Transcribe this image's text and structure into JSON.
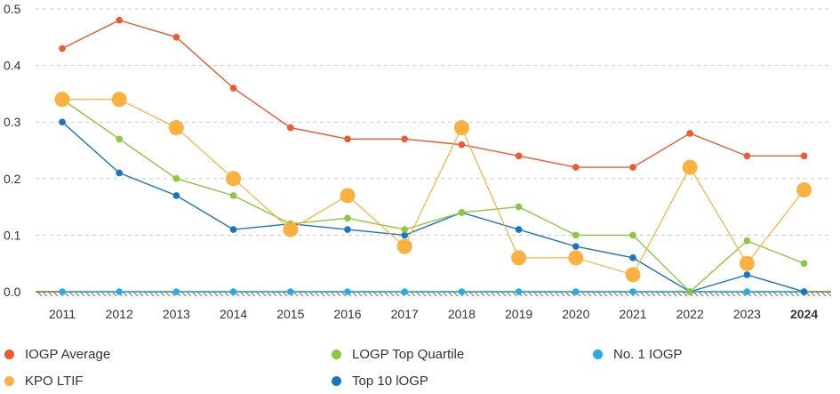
{
  "chart_data": {
    "type": "line",
    "title": "",
    "xlabel": "",
    "ylabel": "",
    "x": [
      "2011",
      "2012",
      "2013",
      "2014",
      "2015",
      "2016",
      "2017",
      "2018",
      "2019",
      "2020",
      "2021",
      "2022",
      "2023",
      "2024"
    ],
    "highlight_x": "2024",
    "yticks": [
      "0.0",
      "0.1",
      "0.2",
      "0.3",
      "0.4",
      "0.5"
    ],
    "ylim": [
      0,
      0.5
    ],
    "grid": "horizontal-dashed",
    "legend_position": "bottom",
    "series": [
      {
        "name": "IOGP Average",
        "color": "#ee5a2f",
        "marker": "small",
        "values": [
          0.43,
          0.48,
          0.45,
          0.36,
          0.29,
          0.27,
          0.27,
          0.26,
          0.24,
          0.22,
          0.22,
          0.28,
          0.24,
          0.24
        ]
      },
      {
        "name": "LOGP Top Quartile",
        "color": "#8dc63f",
        "marker": "small",
        "values": [
          0.34,
          0.27,
          0.2,
          0.17,
          0.12,
          0.13,
          0.11,
          0.14,
          0.15,
          0.1,
          0.1,
          0.0,
          0.09,
          0.05
        ]
      },
      {
        "name": "No. 1 IOGP",
        "color": "#29abe2",
        "marker": "small",
        "values": [
          0,
          0,
          0,
          0,
          0,
          0,
          0,
          0,
          0,
          0,
          0,
          0,
          0,
          0
        ]
      },
      {
        "name": "KPO LTIF",
        "color": "#fbb040",
        "marker": "large",
        "values": [
          0.34,
          0.34,
          0.29,
          0.2,
          0.11,
          0.17,
          0.08,
          0.29,
          0.06,
          0.06,
          0.03,
          0.22,
          0.05,
          0.18
        ]
      },
      {
        "name": "Top 10 lOGP",
        "color": "#1b75bc",
        "marker": "small",
        "values": [
          0.3,
          0.21,
          0.17,
          0.11,
          0.12,
          0.11,
          0.1,
          0.14,
          0.11,
          0.08,
          0.06,
          0.0,
          0.03,
          0.0
        ]
      }
    ]
  }
}
